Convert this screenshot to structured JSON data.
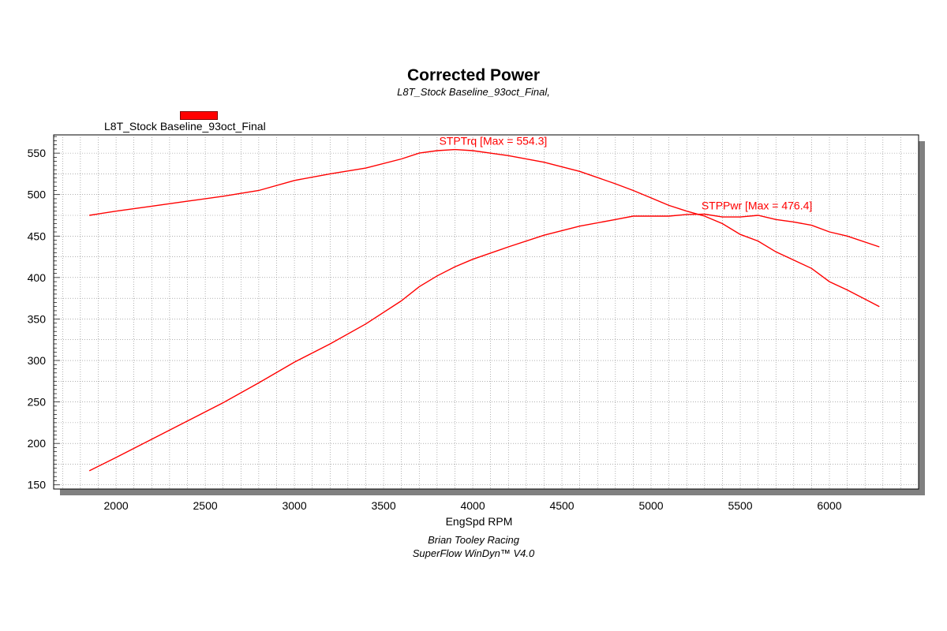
{
  "chart_data": {
    "type": "line",
    "title": "Corrected Power",
    "subtitle": "L8T_Stock Baseline_93oct_Final,",
    "legend": [
      "L8T_Stock Baseline_93oct_Final"
    ],
    "xlabel": "EngSpd RPM",
    "ylabel": "",
    "xlim": [
      1650,
      6500
    ],
    "ylim": [
      145,
      572
    ],
    "xticks": [
      2000,
      2500,
      3000,
      3500,
      4000,
      4500,
      5000,
      5500,
      6000
    ],
    "yticks": [
      150,
      200,
      250,
      300,
      350,
      400,
      450,
      500,
      550
    ],
    "grid": true,
    "series": [
      {
        "name": "STPTrq",
        "label": "STPTrq [Max = 554.3]",
        "color": "#ff0000",
        "x": [
          1850,
          2000,
          2200,
          2400,
          2600,
          2800,
          3000,
          3200,
          3400,
          3600,
          3700,
          3800,
          3900,
          4000,
          4200,
          4400,
          4600,
          4800,
          4900,
          5000,
          5100,
          5200,
          5300,
          5400,
          5500,
          5600,
          5700,
          5800,
          5900,
          6000,
          6100,
          6280
        ],
        "values": [
          475,
          480,
          486,
          492,
          498,
          505,
          517,
          525,
          532,
          543,
          550,
          553,
          554.3,
          553,
          547,
          539,
          528,
          513,
          505,
          496,
          487,
          480,
          474,
          465,
          452,
          444,
          431,
          421,
          411,
          395,
          385,
          365
        ]
      },
      {
        "name": "STPPwr",
        "label": "STPPwr [Max = 476.4]",
        "color": "#ff0000",
        "x": [
          1850,
          2000,
          2200,
          2400,
          2600,
          2800,
          3000,
          3200,
          3400,
          3600,
          3700,
          3800,
          3900,
          4000,
          4200,
          4400,
          4600,
          4800,
          4900,
          5000,
          5100,
          5200,
          5300,
          5400,
          5500,
          5600,
          5700,
          5800,
          5900,
          6000,
          6100,
          6280
        ],
        "values": [
          167,
          183,
          205,
          227,
          249,
          273,
          298,
          320,
          344,
          372,
          389,
          402,
          413,
          422,
          437,
          451,
          462,
          470,
          474,
          474,
          474,
          476,
          476.4,
          473,
          473,
          475,
          470,
          467,
          463,
          455,
          450,
          437
        ]
      }
    ]
  },
  "footer": {
    "line1": "Brian Tooley Racing",
    "line2": "SuperFlow WinDyn™ V4.0"
  },
  "colors": {
    "series": "#ff0000",
    "grid": "#808080",
    "plot_border": "#000000",
    "shadow": "#808080"
  }
}
